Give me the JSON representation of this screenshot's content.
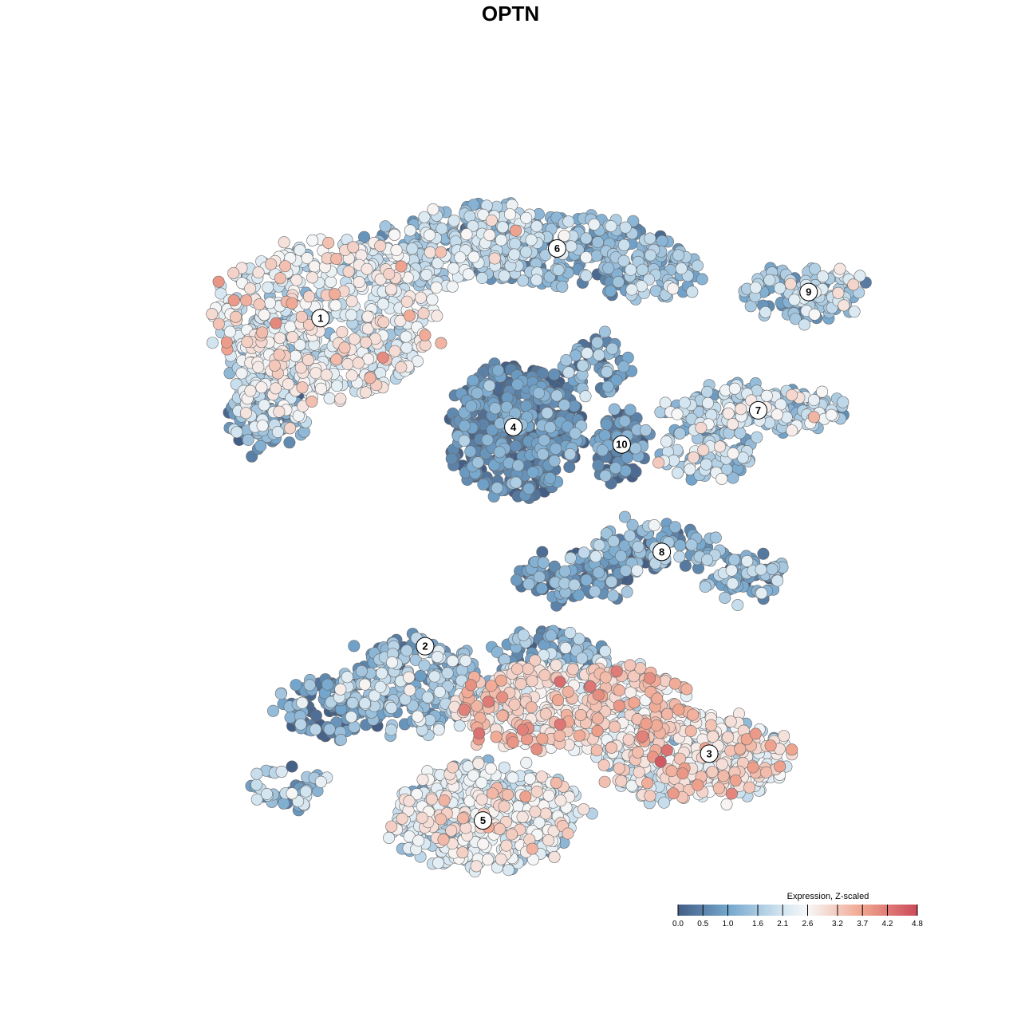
{
  "chart_data": {
    "type": "scatter",
    "title": "OPTN",
    "xlabel": "",
    "ylabel": "",
    "grid": false,
    "legend": {
      "title": "Expression, Z-scaled",
      "placement": "bottom-right",
      "range": [
        0.0,
        4.8
      ],
      "ticks": [
        0.0,
        0.5,
        1.0,
        1.6,
        2.1,
        2.6,
        3.2,
        3.7,
        4.2,
        4.8
      ],
      "tick_labels": [
        "0.0",
        "0.5",
        "1.0",
        "1.6",
        "2.1",
        "2.6",
        "3.2",
        "3.7",
        "4.2",
        "4.8"
      ]
    },
    "color_scale": {
      "stops": [
        0.0,
        1.0,
        2.1,
        2.6,
        3.7,
        4.8
      ],
      "colors": [
        "#445F86",
        "#74A6CD",
        "#D4E6F1",
        "#F7F7F7",
        "#F0A58F",
        "#CB4A5A"
      ]
    },
    "xlim": [
      -50,
      50
    ],
    "ylim": [
      -50,
      50
    ],
    "clusters": [
      {
        "label": "1",
        "center": [
          -28.3,
          26.5
        ],
        "mean_expression": 2.3
      },
      {
        "label": "2",
        "center": [
          -14.2,
          -18.7
        ],
        "mean_expression": 1.3
      },
      {
        "label": "3",
        "center": [
          24.1,
          -33.5
        ],
        "mean_expression": 2.6
      },
      {
        "label": "4",
        "center": [
          -2.3,
          11.5
        ],
        "mean_expression": 0.5
      },
      {
        "label": "5",
        "center": [
          -6.4,
          -42.7
        ],
        "mean_expression": 2.2
      },
      {
        "label": "6",
        "center": [
          3.6,
          36.1
        ],
        "mean_expression": 1.2
      },
      {
        "label": "7",
        "center": [
          30.7,
          13.8
        ],
        "mean_expression": 1.7
      },
      {
        "label": "8",
        "center": [
          17.7,
          -5.7
        ],
        "mean_expression": 1.0
      },
      {
        "label": "9",
        "center": [
          37.5,
          30.1
        ],
        "mean_expression": 1.5
      },
      {
        "label": "10",
        "center": [
          12.3,
          9.1
        ],
        "mean_expression": 0.6
      }
    ],
    "x": [],
    "y": [],
    "z": []
  }
}
